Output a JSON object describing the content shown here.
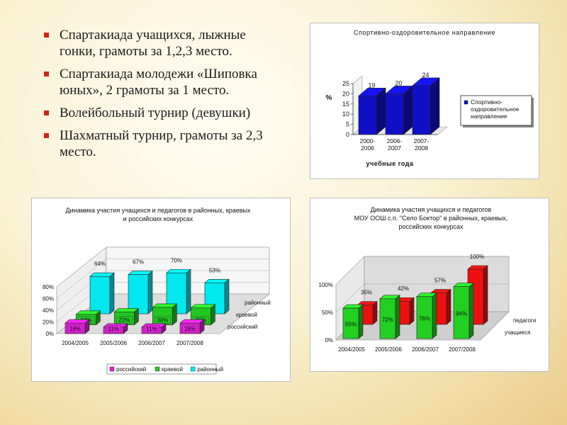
{
  "bullets": [
    "Спартакиада учащихся, лыжные гонки, грамоты за 1,2,3 место.",
    "Спартакиада молодежи «Шиповка юных», 2 грамоты за 1 место.",
    "Волейбольный турнир (девушки)",
    "Шахматный турнир, грамоты за 2,3 место."
  ],
  "chart_data": [
    {
      "type": "bar",
      "title": "Спортивно-оздоровительное направление",
      "xlabel": "учебные года",
      "ylabel": "%",
      "categories": [
        "2000-2006",
        "2006-2007",
        "2007-2008"
      ],
      "category_lines": [
        [
          "2000-",
          "2006"
        ],
        [
          "2006-",
          "2007"
        ],
        [
          "2007-",
          "2008"
        ]
      ],
      "series": [
        {
          "name": "Спортивно-оздоровительное направление",
          "values": [
            19,
            20,
            24
          ],
          "color": "#1010c8"
        }
      ],
      "legend_lines": [
        "Спортивно-",
        "оздоровительное",
        "направление"
      ],
      "yticks": [
        "0",
        "5",
        "10",
        "15",
        "20",
        "25"
      ],
      "ylim": [
        0,
        25
      ],
      "legend": "right"
    },
    {
      "type": "bar",
      "title": "Динамика участия учащихся и педагогов в районных, краевых и российских конкурсах",
      "title_lines": [
        "Динамика участия учащихся и педагогов в районных, краевых",
        "и российских конкурсах"
      ],
      "categories": [
        "2004/2005",
        "2005/2006",
        "2006/2007",
        "2007/2008"
      ],
      "series": [
        {
          "name": "российский",
          "values": [
            18,
            11,
            11,
            18
          ],
          "labels": [
            "18%",
            "11%",
            "11%",
            "18%"
          ],
          "color": "#e020d8"
        },
        {
          "name": "краевой",
          "values": [
            18,
            22,
            30,
            29
          ],
          "labels": [
            "18%",
            "22%",
            "30%",
            "29%"
          ],
          "color": "#22c822"
        },
        {
          "name": "районный",
          "values": [
            64,
            67,
            70,
            53
          ],
          "labels": [
            "64%",
            "67%",
            "70%",
            "53%"
          ],
          "color": "#00e8f0"
        }
      ],
      "yticks": [
        "0%",
        "20%",
        "40%",
        "60%",
        "80%"
      ],
      "ylim": [
        0,
        80
      ],
      "depth_labels": [
        "районный",
        "краевой",
        "российский"
      ],
      "legend_labels": [
        "российский",
        "краевой",
        "районный"
      ],
      "legend": "bottom"
    },
    {
      "type": "bar",
      "title": "Динамика участия учащихся и педагогов МОУ ООШ с.п. \"Село Боктор\" в районных, краевых, российских конкурсах",
      "title_lines": [
        "Динамика участия учащихся и педагогов",
        "МОУ ООШ с.п. \"Село Боктор\" в районных, краевых,",
        "российских конкурсах"
      ],
      "categories": [
        "2004/2005",
        "2005/2006",
        "2006/2007",
        "2007/2008"
      ],
      "series": [
        {
          "name": "учащиеся",
          "values": [
            55,
            72,
            76,
            94
          ],
          "labels": [
            "55%",
            "72%",
            "76%",
            "94%"
          ],
          "color": "#22d022"
        },
        {
          "name": "педагоги",
          "values": [
            35,
            42,
            57,
            100
          ],
          "labels": [
            "35%",
            "42%",
            "57%",
            "100%"
          ],
          "color": "#ee1010"
        }
      ],
      "yticks": [
        "0%",
        "50%",
        "100%"
      ],
      "ylim": [
        0,
        100
      ],
      "depth_labels": [
        "педагоги",
        "учащиеся"
      ]
    }
  ]
}
